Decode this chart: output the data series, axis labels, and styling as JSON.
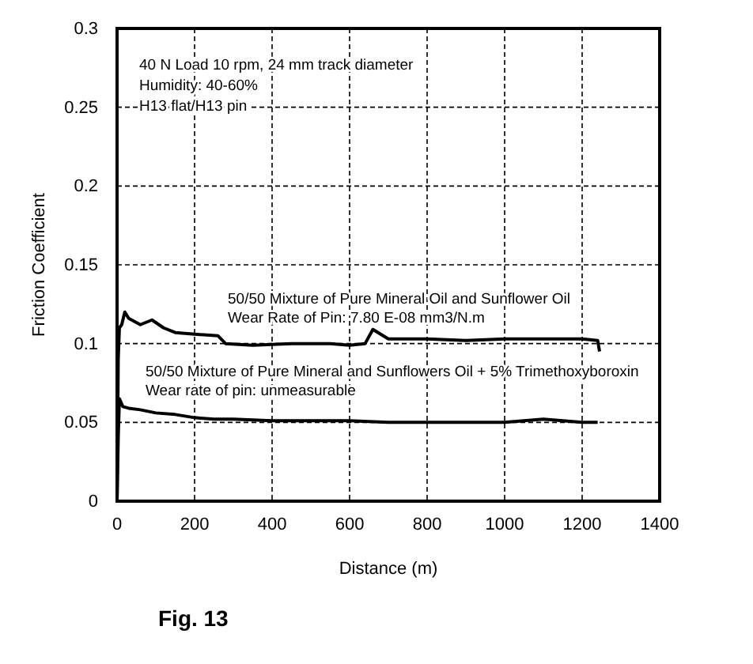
{
  "chart_data": {
    "type": "line",
    "title": "Fig. 13",
    "xlabel": "Distance (m)",
    "ylabel": "Friction Coefficient",
    "xlim": [
      0,
      1400
    ],
    "xticks": [
      0,
      200,
      400,
      600,
      800,
      1000,
      1200,
      1400
    ],
    "ylim": [
      0,
      0.3
    ],
    "yticks": [
      0,
      0.05,
      0.1,
      0.15,
      0.2,
      0.25,
      0.3
    ],
    "grid": true,
    "line_style": "solid",
    "marker": "none",
    "annotations": [
      "40 N Load  10 rpm, 24 mm track diameter",
      "Humidity: 40-60%",
      "H13 flat/H13 pin",
      "50/50 Mixture of Pure Mineral Oil and Sunflower Oil",
      "Wear Rate of Pin: 7.80 E-08 mm3/N.m",
      "50/50 Mixture of Pure Mineral and Sunflowers Oil + 5% Trimethoxyboroxin",
      "Wear rate of pin: unmeasurable"
    ],
    "series": [
      {
        "color": "#000000",
        "x": [
          0,
          3,
          6,
          12,
          20,
          30,
          45,
          60,
          90,
          120,
          150,
          200,
          260,
          280,
          350,
          450,
          550,
          600,
          640,
          660,
          700,
          800,
          900,
          1000,
          1100,
          1200,
          1240,
          1245
        ],
        "values": [
          0,
          0.09,
          0.11,
          0.112,
          0.12,
          0.116,
          0.114,
          0.112,
          0.115,
          0.11,
          0.107,
          0.106,
          0.105,
          0.1,
          0.099,
          0.1,
          0.1,
          0.099,
          0.1,
          0.109,
          0.103,
          0.103,
          0.102,
          0.103,
          0.103,
          0.103,
          0.102,
          0.095
        ]
      },
      {
        "color": "#000000",
        "x": [
          0,
          3,
          6,
          15,
          30,
          60,
          100,
          150,
          200,
          250,
          300,
          400,
          500,
          600,
          700,
          800,
          900,
          1000,
          1050,
          1100,
          1150,
          1200,
          1240
        ],
        "values": [
          0,
          0.04,
          0.065,
          0.06,
          0.059,
          0.058,
          0.056,
          0.055,
          0.053,
          0.052,
          0.052,
          0.051,
          0.051,
          0.051,
          0.05,
          0.05,
          0.05,
          0.05,
          0.051,
          0.052,
          0.051,
          0.05,
          0.05
        ]
      }
    ]
  }
}
